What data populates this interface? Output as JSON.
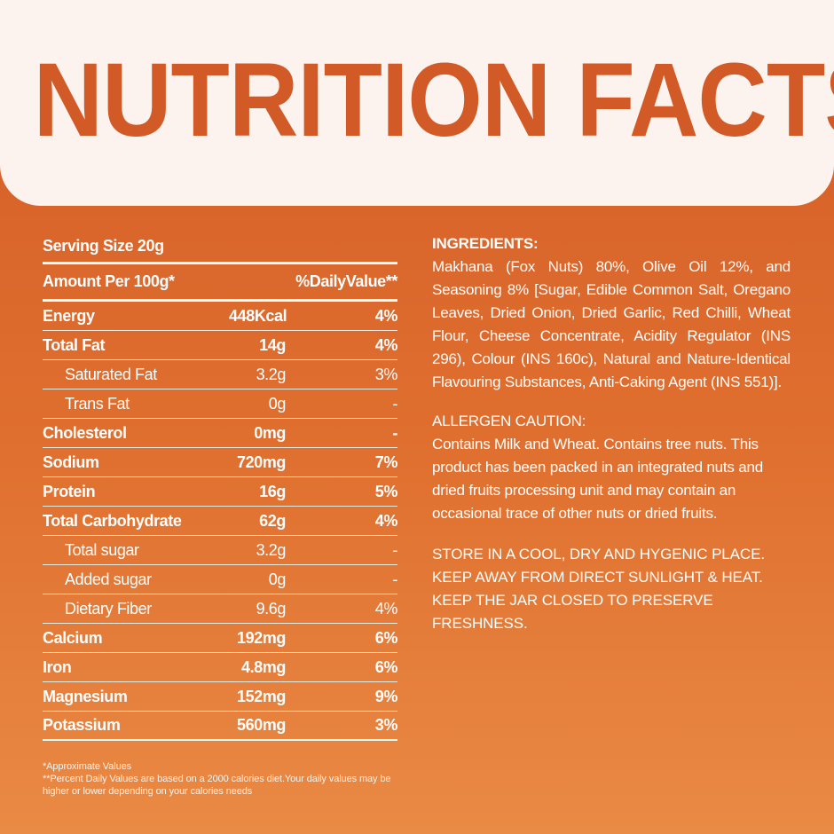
{
  "header": {
    "title": "NUTRITION FACTS"
  },
  "nutrition": {
    "serving_size": "Serving Size 20g",
    "column_headers": {
      "amount": "Amount Per 100g*",
      "daily_value": "%DailyValue**"
    },
    "rows": [
      {
        "name": "Energy",
        "amount": "448Kcal",
        "dv": "4%",
        "style": "bold"
      },
      {
        "name": "Total Fat",
        "amount": "14g",
        "dv": "4%",
        "style": "bold"
      },
      {
        "name": "Saturated Fat",
        "amount": "3.2g",
        "dv": "3%",
        "style": "sub"
      },
      {
        "name": "Trans Fat",
        "amount": "0g",
        "dv": "-",
        "style": "sub"
      },
      {
        "name": "Cholesterol",
        "amount": "0mg",
        "dv": "-",
        "style": "bold"
      },
      {
        "name": "Sodium",
        "amount": "720mg",
        "dv": "7%",
        "style": "bold"
      },
      {
        "name": "Protein",
        "amount": "16g",
        "dv": "5%",
        "style": "bold"
      },
      {
        "name": "Total Carbohydrate",
        "amount": "62g",
        "dv": "4%",
        "style": "bold"
      },
      {
        "name": "Total sugar",
        "amount": "3.2g",
        "dv": "-",
        "style": "sub"
      },
      {
        "name": "Added sugar",
        "amount": "0g",
        "dv": "-",
        "style": "sub"
      },
      {
        "name": "Dietary Fiber",
        "amount": "9.6g",
        "dv": "4%",
        "style": "sub"
      },
      {
        "name": "Calcium",
        "amount": "192mg",
        "dv": "6%",
        "style": "bold"
      },
      {
        "name": "Iron",
        "amount": "4.8mg",
        "dv": "6%",
        "style": "bold"
      },
      {
        "name": "Magnesium",
        "amount": "152mg",
        "dv": "9%",
        "style": "bold"
      },
      {
        "name": "Potassium",
        "amount": "560mg",
        "dv": "3%",
        "style": "bold"
      }
    ],
    "footnotes": [
      "*Approximate Values",
      "**Percent Daily Values are based on a 2000 calories diet.Your daily values may be higher or lower depending on your calories needs"
    ]
  },
  "ingredients": {
    "heading": "INGREDIENTS:",
    "text": "Makhana (Fox Nuts) 80%, Olive Oil 12%, and Seasoning 8% [Sugar, Edible Common Salt, Oregano Leaves, Dried Onion, Dried Garlic, Red Chilli, Wheat Flour, Cheese Concentrate, Acidity Regulator (INS 296), Colour (INS 160c), Natural and Nature-Identical Flavouring Substances, Anti-Caking Agent (INS 551)]."
  },
  "allergen": {
    "heading": "ALLERGEN CAUTION:",
    "text": "Contains Milk and Wheat. Contains tree nuts. This product has been packed in an integrated nuts and dried fruits processing unit and may contain an occasional trace of other nuts or dried fruits."
  },
  "storage": {
    "text": "STORE IN A COOL, DRY AND HYGENIC PLACE. KEEP AWAY FROM DIRECT SUNLIGHT & HEAT. KEEP THE JAR CLOSED TO PRESERVE FRESHNESS."
  },
  "colors": {
    "brand_orange": "#d25a26",
    "header_bg": "#fdf3ee"
  }
}
